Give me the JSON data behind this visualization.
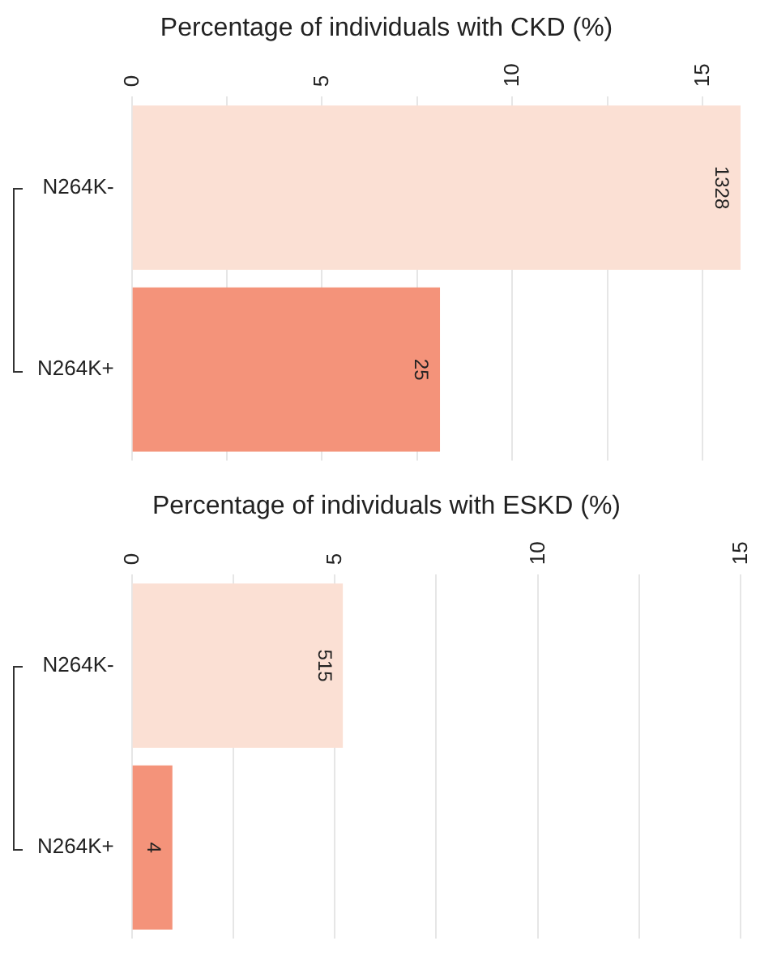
{
  "chart_data": [
    {
      "type": "bar",
      "orientation": "horizontal",
      "title": "Percentage of individuals with CKD (%)",
      "categories": [
        "N264K-",
        "N264K+"
      ],
      "values": [
        16,
        8.1
      ],
      "colors": [
        "#fbe0d4",
        "#f4937a"
      ],
      "annotations": [
        {
          "text": "1328",
          "x": 16,
          "y": "N264K-"
        },
        {
          "text": "25",
          "x": 8.1,
          "y": "N264K+"
        }
      ],
      "xlim": [
        0,
        16
      ],
      "xticks": [
        0,
        {
          "value": 2.5,
          "label": null
        },
        5,
        {
          "value": 7.5,
          "label": null
        },
        10,
        {
          "value": 12.5,
          "label": null
        },
        15
      ],
      "grid": "x",
      "legend": false
    },
    {
      "type": "bar",
      "orientation": "horizontal",
      "title": "Percentage of individuals with ESKD (%)",
      "categories": [
        "N264K-",
        "N264K+"
      ],
      "values": [
        5.2,
        1.0
      ],
      "colors": [
        "#fbe0d4",
        "#f4937a"
      ],
      "annotations": [
        {
          "text": "515",
          "x": 5.2,
          "y": "N264K-"
        },
        {
          "text": "4",
          "x": 1.0,
          "y": "N264K+"
        }
      ],
      "xlim": [
        0,
        15
      ],
      "xticks": [
        0,
        {
          "value": 2.5,
          "label": null
        },
        5,
        {
          "value": 7.5,
          "label": null
        },
        10,
        {
          "value": 12.5,
          "label": null
        },
        15
      ],
      "grid": "x",
      "legend": false
    }
  ]
}
